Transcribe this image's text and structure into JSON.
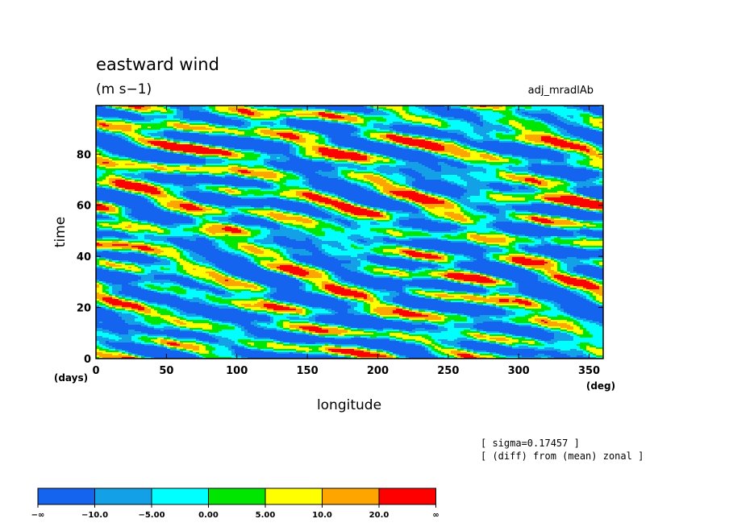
{
  "header": {
    "title": "eastward wind",
    "units": "(m s−1)",
    "run_name": "adj_mradlAb"
  },
  "notes": {
    "line1": "[ sigma=0.17457 ]",
    "line2": "[ (diff) from (mean) zonal ]"
  },
  "chart_data": {
    "type": "heatmap",
    "xlabel": "longitude",
    "xunit": "(deg)",
    "ylabel": "time",
    "yunit": "(days)",
    "xlim": [
      0,
      360
    ],
    "ylim": [
      0,
      99
    ],
    "xticks": [
      0,
      50,
      100,
      150,
      200,
      250,
      300,
      350
    ],
    "yticks": [
      0,
      20,
      40,
      60,
      80
    ],
    "colorbar": {
      "levels": [
        "−∞",
        "−10.0",
        "−5.00",
        "0.00",
        "5.00",
        "10.0",
        "20.0",
        "∞"
      ],
      "colors": [
        "#1464f0",
        "#14a0e6",
        "#00ffff",
        "#00e600",
        "#ffff00",
        "#ffa500",
        "#ff0000"
      ]
    }
  }
}
